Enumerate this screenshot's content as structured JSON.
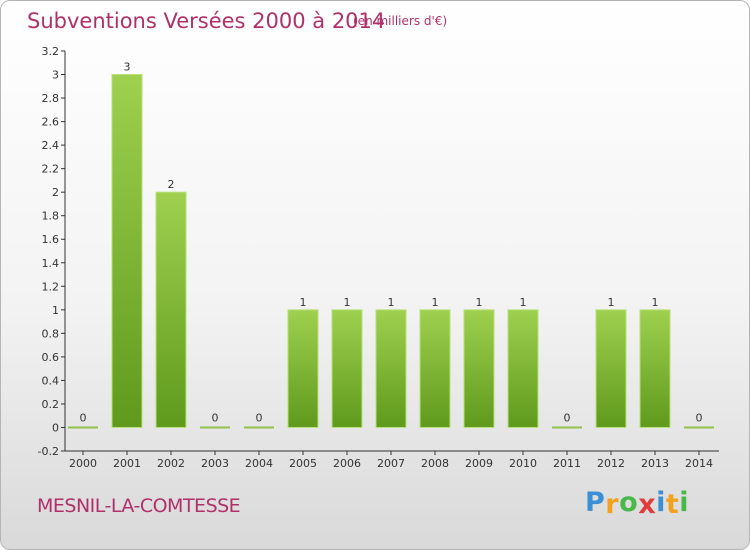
{
  "header": {
    "title": "Subventions Versées 2000 à 2014",
    "unit": "(en milliers d'€)"
  },
  "footer": {
    "place": "MESNIL-LA-COMTESSE",
    "logo_letters": [
      {
        "ch": "P",
        "color": "#3a8fd6"
      },
      {
        "ch": "r",
        "color": "#f2a21f"
      },
      {
        "ch": "o",
        "color": "#48b848"
      },
      {
        "ch": "x",
        "color": "#e03c3c"
      },
      {
        "ch": "i",
        "color": "#3a8fd6"
      },
      {
        "ch": "t",
        "color": "#f2a21f"
      },
      {
        "ch": "i",
        "color": "#48b848"
      }
    ]
  },
  "colors": {
    "title": "#b0306a",
    "bar_top": "#9fd04f",
    "bar_bottom": "#5f9a1c",
    "zero_bar": "#8fc24a"
  },
  "chart_data": {
    "type": "bar",
    "title": "Subventions Versées 2000 à 2014",
    "subtitle": "(en milliers d'€)",
    "categories": [
      "2000",
      "2001",
      "2002",
      "2003",
      "2004",
      "2005",
      "2006",
      "2007",
      "2008",
      "2009",
      "2010",
      "2011",
      "2012",
      "2013",
      "2014"
    ],
    "values": [
      0,
      3,
      2,
      0,
      0,
      1,
      1,
      1,
      1,
      1,
      1,
      0,
      1,
      1,
      0
    ],
    "value_labels": [
      "0",
      "3",
      "2",
      "0",
      "0",
      "1",
      "1",
      "1",
      "1",
      "1",
      "1",
      "0",
      "1",
      "1",
      "0"
    ],
    "xlabel": "",
    "ylabel": "",
    "ylim": [
      -0.2,
      3.2
    ],
    "yticks": [
      -0.2,
      0,
      0.2,
      0.4,
      0.6,
      0.8,
      1,
      1.2,
      1.4,
      1.6,
      1.8,
      2,
      2.2,
      2.4,
      2.6,
      2.8,
      3,
      3.2
    ],
    "ytick_labels": [
      "-0.2",
      "0",
      "0.2",
      "0.4",
      "0.6",
      "0.8",
      "1",
      "1.2",
      "1.4",
      "1.6",
      "1.8",
      "2",
      "2.2",
      "2.4",
      "2.6",
      "2.8",
      "3",
      "3.2"
    ],
    "grid": false,
    "legend": "none"
  }
}
